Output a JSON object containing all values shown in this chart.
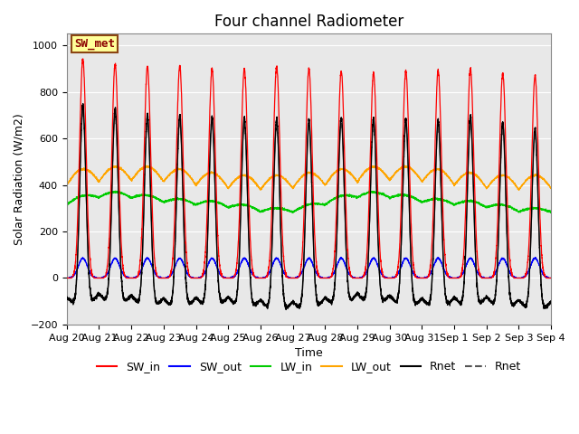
{
  "title": "Four channel Radiometer",
  "xlabel": "Time",
  "ylabel": "Solar Radiation (W/m2)",
  "ylim": [
    -200,
    1050
  ],
  "n_days": 15,
  "x_tick_labels": [
    "Aug 20",
    "Aug 21",
    "Aug 22",
    "Aug 23",
    "Aug 24",
    "Aug 25",
    "Aug 26",
    "Aug 27",
    "Aug 28",
    "Aug 29",
    "Aug 30",
    "Aug 31",
    "Sep 1",
    "Sep 2",
    "Sep 3",
    "Sep 4"
  ],
  "annotation_text": "SW_met",
  "annotation_bg": "#FFFF99",
  "annotation_border": "#8B4513",
  "annotation_text_color": "#8B0000",
  "colors": {
    "SW_in": "#FF0000",
    "SW_out": "#0000FF",
    "LW_in": "#00CC00",
    "LW_out": "#FFA500",
    "Rnet_black": "#000000",
    "Rnet_dark": "#555555"
  },
  "background_color": "#E8E8E8",
  "title_fontsize": 12,
  "axis_fontsize": 9,
  "legend_fontsize": 9
}
